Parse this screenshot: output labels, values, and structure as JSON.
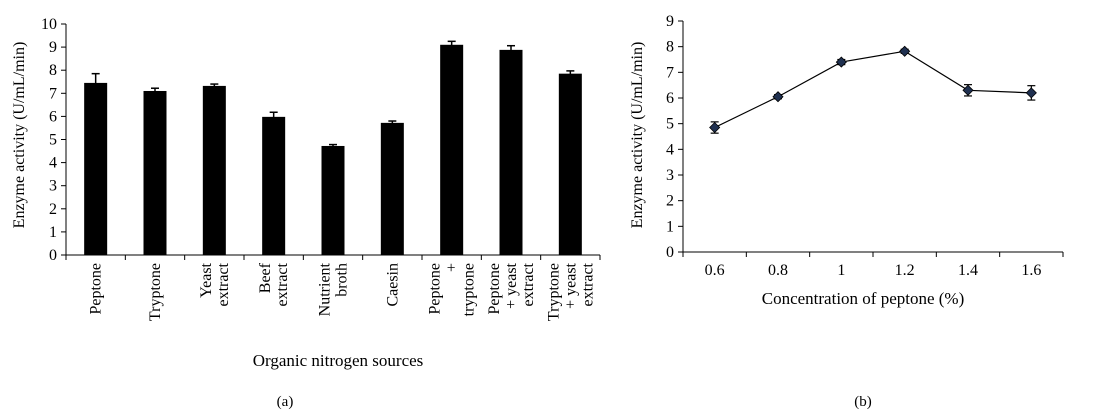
{
  "chart_data": [
    {
      "type": "bar",
      "panel_label": "(a)",
      "xlabel": "Organic nitrogen sources",
      "ylabel": "Enzyme activity (U/mL/min)",
      "ylim": [
        0,
        10
      ],
      "yticks": [
        0,
        1,
        2,
        3,
        4,
        5,
        6,
        7,
        8,
        9,
        10
      ],
      "grid": false,
      "categories": [
        [
          "Peptone"
        ],
        [
          "Tryptone"
        ],
        [
          "Yeast",
          "extract"
        ],
        [
          "Beef",
          "extract"
        ],
        [
          "Nutrient",
          "broth"
        ],
        [
          "Caesin"
        ],
        [
          "Peptone",
          "+",
          "tryptone"
        ],
        [
          "Peptone",
          "+ yeast",
          "extract"
        ],
        [
          "Tryptone",
          "+ yeast",
          "extract"
        ]
      ],
      "values": [
        7.45,
        7.1,
        7.32,
        5.98,
        4.72,
        5.72,
        9.1,
        8.88,
        7.85
      ],
      "errors": [
        0.4,
        0.12,
        0.08,
        0.2,
        0.06,
        0.08,
        0.15,
        0.18,
        0.12
      ],
      "colors": {
        "bar": "#000000",
        "axis": "#000000"
      }
    },
    {
      "type": "line",
      "panel_label": "(b)",
      "xlabel": "Concentration of peptone (%)",
      "ylabel": "Enzyme activity (U/mL/min)",
      "ylim": [
        0,
        9
      ],
      "yticks": [
        0,
        1,
        2,
        3,
        4,
        5,
        6,
        7,
        8,
        9
      ],
      "xticks": [
        "0.6",
        "0.8",
        "1",
        "1.2",
        "1.4",
        "1.6"
      ],
      "grid": false,
      "x": [
        0.6,
        0.8,
        1.0,
        1.2,
        1.4,
        1.6
      ],
      "y": [
        4.85,
        6.05,
        7.4,
        7.82,
        6.3,
        6.2
      ],
      "errors": [
        0.22,
        0.08,
        0.1,
        0.08,
        0.22,
        0.28
      ],
      "colors": {
        "marker": "#1f3050",
        "line": "#000000",
        "axis": "#000000"
      }
    }
  ]
}
